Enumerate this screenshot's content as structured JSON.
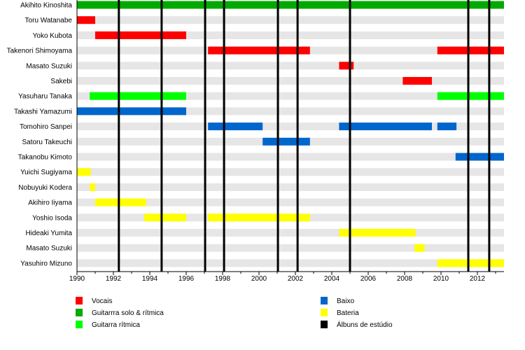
{
  "chart_data": {
    "type": "timeline",
    "xlim": [
      1990,
      2013.46
    ],
    "x_ticks": [
      1990,
      1992,
      1994,
      1996,
      1998,
      2000,
      2002,
      2004,
      2006,
      2008,
      2010,
      2012
    ],
    "x_tick_labels": [
      "1990",
      "1992",
      "1994",
      "1996",
      "1998",
      "2000",
      "2002",
      "2004",
      "2006",
      "2008",
      "2010",
      "2012"
    ],
    "grid": false,
    "legend_placement": "bottom",
    "roles": [
      {
        "key": "vocals",
        "label": "Vocais",
        "color": "#ff0000"
      },
      {
        "key": "lead_guitar",
        "label": "Guitarrra solo & rítmica",
        "color": "#00aa00"
      },
      {
        "key": "rhythm_guitar",
        "label": "Guitarra rítmica",
        "color": "#00ff00"
      },
      {
        "key": "bass",
        "label": "Baixo",
        "color": "#0066cc"
      },
      {
        "key": "drums",
        "label": "Bateria",
        "color": "#ffff00"
      },
      {
        "key": "albums",
        "label": "Álbuns de estúdio",
        "color": "#000000"
      }
    ],
    "members": [
      {
        "name": "Akihito Kinoshita",
        "periods": [
          {
            "role": "lead_guitar",
            "start": 1990,
            "end": 2013.46
          }
        ]
      },
      {
        "name": "Toru Watanabe",
        "periods": [
          {
            "role": "vocals",
            "start": 1990,
            "end": 1991
          }
        ]
      },
      {
        "name": "Yoko Kubota",
        "periods": [
          {
            "role": "vocals",
            "start": 1991,
            "end": 1996
          }
        ]
      },
      {
        "name": "Takenori Shimoyama",
        "periods": [
          {
            "role": "vocals",
            "start": 1997.2,
            "end": 2002.8
          },
          {
            "role": "vocals",
            "start": 2009.8,
            "end": 2013.46
          }
        ]
      },
      {
        "name": "Masato Suzuki",
        "periods": [
          {
            "role": "vocals",
            "start": 2004.4,
            "end": 2005.2
          }
        ]
      },
      {
        "name": "Sakebi",
        "periods": [
          {
            "role": "vocals",
            "start": 2007.9,
            "end": 2009.5
          }
        ]
      },
      {
        "name": "Yasuharu Tanaka",
        "periods": [
          {
            "role": "rhythm_guitar",
            "start": 1990.7,
            "end": 1996
          },
          {
            "role": "rhythm_guitar",
            "start": 2009.8,
            "end": 2013.46
          }
        ]
      },
      {
        "name": "Takashi Yamazumi",
        "periods": [
          {
            "role": "bass",
            "start": 1990,
            "end": 1996
          }
        ]
      },
      {
        "name": "Tomohiro Sanpei",
        "periods": [
          {
            "role": "bass",
            "start": 1997.2,
            "end": 2000.2
          },
          {
            "role": "bass",
            "start": 2004.4,
            "end": 2009.5
          },
          {
            "role": "bass",
            "start": 2009.8,
            "end": 2010.85
          }
        ]
      },
      {
        "name": "Satoru Takeuchi",
        "periods": [
          {
            "role": "bass",
            "start": 2000.2,
            "end": 2002.8
          }
        ]
      },
      {
        "name": "Takanobu Kimoto",
        "periods": [
          {
            "role": "bass",
            "start": 2010.8,
            "end": 2013.46
          }
        ]
      },
      {
        "name": "Yuichi Sugiyama",
        "periods": [
          {
            "role": "drums",
            "start": 1990,
            "end": 1990.75
          }
        ]
      },
      {
        "name": "Nobuyuki Kodera",
        "periods": [
          {
            "role": "drums",
            "start": 1990.7,
            "end": 1991
          }
        ]
      },
      {
        "name": "Akihiro Iiyama",
        "periods": [
          {
            "role": "drums",
            "start": 1991,
            "end": 1993.8
          }
        ]
      },
      {
        "name": "Yoshio Isoda",
        "periods": [
          {
            "role": "drums",
            "start": 1993.7,
            "end": 1996
          },
          {
            "role": "drums",
            "start": 1997.2,
            "end": 2002.8
          }
        ]
      },
      {
        "name": "Hideaki Yumita",
        "periods": [
          {
            "role": "drums",
            "start": 2004.4,
            "end": 2008.6
          }
        ]
      },
      {
        "name": "Masato Suzuki",
        "periods": [
          {
            "role": "drums",
            "start": 2008.55,
            "end": 2009.1
          }
        ]
      },
      {
        "name": "Yasuhiro Mizuno",
        "periods": [
          {
            "role": "drums",
            "start": 2009.8,
            "end": 2013.46
          }
        ]
      }
    ],
    "albums": [
      1992.3,
      1994.65,
      1997.04,
      1998.08,
      2001.04,
      2002.12,
      2005.0,
      2011.5,
      2012.65
    ]
  }
}
